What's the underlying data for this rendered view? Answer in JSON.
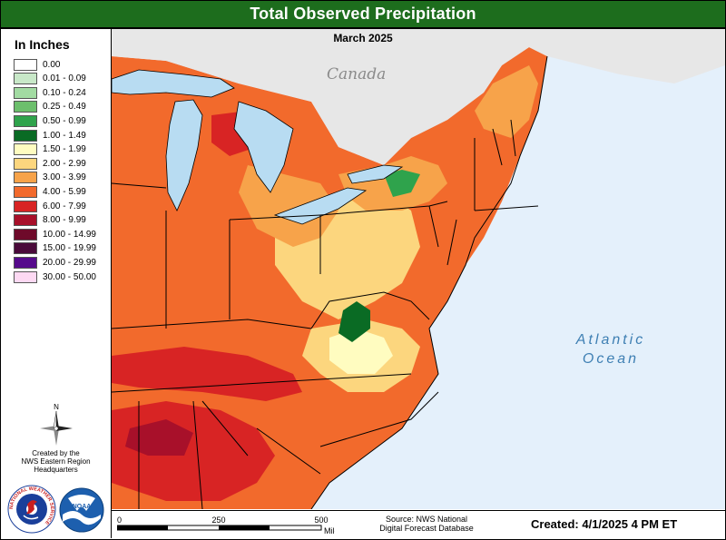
{
  "header": {
    "title": "Total Observed Precipitation"
  },
  "map": {
    "subtitle": "March 2025",
    "land_labels": {
      "canada": "Canada"
    },
    "water_labels": {
      "ocean_line1": "Atlantic",
      "ocean_line2": "Ocean"
    }
  },
  "legend": {
    "title": "In Inches",
    "items": [
      {
        "label": "0.00",
        "color": "#ffffff"
      },
      {
        "label": "0.01 - 0.09",
        "color": "#c8e8c8"
      },
      {
        "label": "0.10 - 0.24",
        "color": "#a2dba2"
      },
      {
        "label": "0.25 - 0.49",
        "color": "#6cbf6c"
      },
      {
        "label": "0.50 - 0.99",
        "color": "#2fa34c"
      },
      {
        "label": "1.00 - 1.49",
        "color": "#0a6b24"
      },
      {
        "label": "1.50 - 1.99",
        "color": "#fffcc0"
      },
      {
        "label": "2.00 - 2.99",
        "color": "#fcd67e"
      },
      {
        "label": "3.00 - 3.99",
        "color": "#f7a34a"
      },
      {
        "label": "4.00 - 5.99",
        "color": "#f26a2c"
      },
      {
        "label": "6.00 - 7.99",
        "color": "#d82424"
      },
      {
        "label": "8.00 - 9.99",
        "color": "#a8102a"
      },
      {
        "label": "10.00 - 14.99",
        "color": "#6e0a2a"
      },
      {
        "label": "15.00 - 19.99",
        "color": "#4a0a3a"
      },
      {
        "label": "20.00 - 29.99",
        "color": "#560a8c"
      },
      {
        "label": "30.00 - 50.00",
        "color": "#fdd9f3"
      }
    ]
  },
  "compass": {
    "north_label": "N"
  },
  "credit": {
    "line1": "Created by the",
    "line2": "NWS Eastern Region",
    "line3": "Headquarters"
  },
  "logos": {
    "nws_ring_text": "NATIONAL WEATHER SERVICE",
    "noaa_text": "NOAA"
  },
  "scale": {
    "ticks": [
      "0",
      "250",
      "500"
    ],
    "unit": "Miles"
  },
  "source": {
    "line1": "Source: NWS National",
    "line2": "Digital Forecast Database"
  },
  "created": "Created: 4/1/2025 4 PM ET",
  "colors": {
    "header_bg": "#1d6d1d",
    "water": "#e4f0fb",
    "lakes": "#b8dcf2",
    "canada_land": "#e7e7e7"
  }
}
